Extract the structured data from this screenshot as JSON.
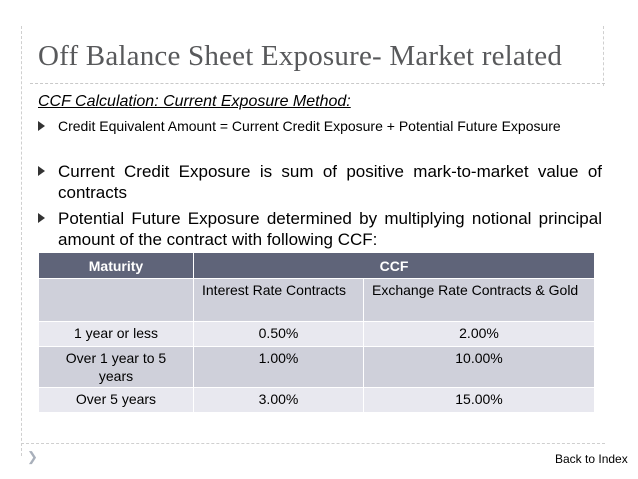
{
  "slide": {
    "title": "Off Balance Sheet Exposure- Market related",
    "subtitle": "CCF Calculation: Current Exposure Method:",
    "bullets": [
      "Credit Equivalent Amount = Current Credit Exposure + Potential Future Exposure",
      "Current Credit Exposure is sum of positive mark-to-market value of contracts",
      "Potential Future Exposure determined by multiplying notional principal amount of the contract with following CCF:"
    ],
    "table": {
      "header_maturity": "Maturity",
      "header_ccf": "CCF",
      "sub_interest": "Interest Rate Contracts",
      "sub_exchange": "Exchange Rate Contracts & Gold",
      "rows": [
        {
          "maturity": "1 year or less",
          "interest": "0.50%",
          "exchange": "2.00%"
        },
        {
          "maturity": "Over 1 year to 5 years",
          "interest": "1.00%",
          "exchange": "10.00%"
        },
        {
          "maturity": "Over 5 years",
          "interest": "3.00%",
          "exchange": "15.00%"
        }
      ]
    },
    "back_link": "Back to Index",
    "colors": {
      "header_bg": "#5f6479",
      "row_dark": "#cfd0da",
      "row_light": "#e8e8ef",
      "title": "#58595b"
    }
  }
}
